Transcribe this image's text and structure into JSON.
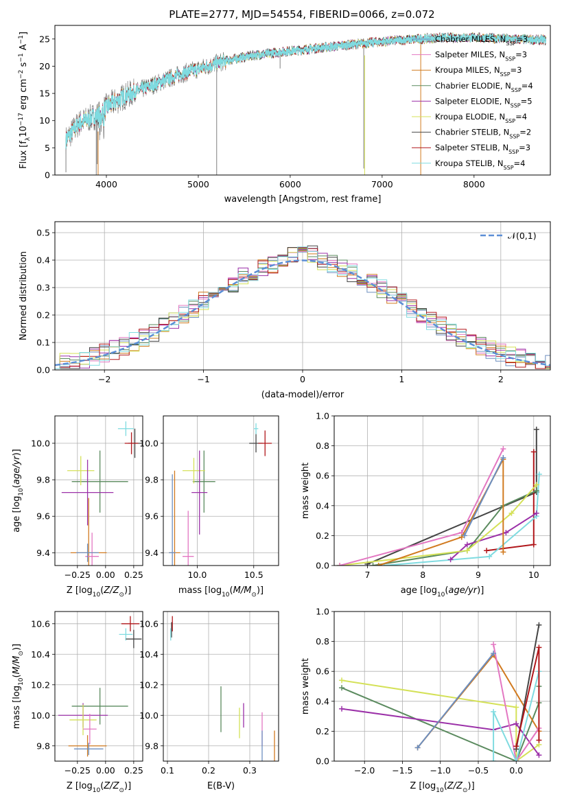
{
  "figure_title": "PLATE=2777, MJD=54554, FIBERID=0066, z=0.072",
  "colors": {
    "Chabrier MILES": "#6c8ebf",
    "Salpeter MILES": "#e377c2",
    "Kroupa MILES": "#d17a1f",
    "Chabrier ELODIE": "#5a8a5e",
    "Salpeter ELODIE": "#9b30a8",
    "Kroupa ELODIE": "#d4e157",
    "Chabrier STELIB": "#444444",
    "Salpeter STELIB": "#b0161a",
    "Kroupa STELIB": "#7fdbe0",
    "data": "#7f7f7f",
    "normal": "#5b8ed6"
  },
  "chart_data": [
    {
      "type": "line",
      "id": "spectrum",
      "xlabel": "wavelength [Angstrom, rest frame]",
      "ylabel": "Flux [f_λ10^-17 erg cm^-2 s^-1 A^-1]",
      "xlim": [
        3440,
        8830
      ],
      "ylim": [
        0,
        27.5
      ],
      "xticks": [
        4000,
        5000,
        6000,
        7000,
        8000
      ],
      "yticks": [
        0,
        5,
        10,
        15,
        20,
        25
      ],
      "legend_position": "right",
      "series": [
        {
          "name": "Chabrier MILES, N_SSP=3"
        },
        {
          "name": "Salpeter MILES, N_SSP=3"
        },
        {
          "name": "Kroupa MILES, N_SSP=3"
        },
        {
          "name": "Chabrier ELODIE, N_SSP=4"
        },
        {
          "name": "Salpeter ELODIE, N_SSP=5"
        },
        {
          "name": "Kroupa ELODIE, N_SSP=4"
        },
        {
          "name": "Chabrier STELIB, N_SSP=2"
        },
        {
          "name": "Salpeter STELIB, N_SSP=3"
        },
        {
          "name": "Kroupa STELIB, N_SSP=4"
        }
      ],
      "continuum": [
        [
          3560,
          6.5
        ],
        [
          3700,
          9.5
        ],
        [
          3900,
          11
        ],
        [
          4000,
          12.5
        ],
        [
          4200,
          14.5
        ],
        [
          4500,
          16.5
        ],
        [
          4800,
          18.5
        ],
        [
          5000,
          19.5
        ],
        [
          5300,
          21
        ],
        [
          5600,
          22
        ],
        [
          6000,
          22.8
        ],
        [
          6400,
          23.5
        ],
        [
          6800,
          24.2
        ],
        [
          7200,
          24.8
        ],
        [
          7600,
          25.2
        ],
        [
          8000,
          25.3
        ],
        [
          8400,
          25
        ],
        [
          8780,
          24.8
        ]
      ]
    },
    {
      "type": "step",
      "id": "residuals",
      "xlabel": "(data-model)/error",
      "ylabel": "Normed distribution",
      "xlim": [
        -2.5,
        2.5
      ],
      "ylim": [
        0,
        0.54
      ],
      "xticks": [
        -2,
        -1,
        0,
        1,
        2
      ],
      "yticks": [
        0.0,
        0.1,
        0.2,
        0.3,
        0.4,
        0.5
      ],
      "legend": "𝒩(0,1)",
      "bin_width": 0.1
    },
    {
      "type": "scatter",
      "id": "age-vs-Z",
      "xlabel": "Z [log10(Z/Z⊙)]",
      "ylabel": "age [log10(age/yr)]",
      "xlim": [
        -0.45,
        0.33
      ],
      "ylim": [
        9.33,
        10.15
      ],
      "xticks": [
        -0.25,
        0.0,
        0.25
      ],
      "yticks": [
        9.4,
        9.6,
        9.8,
        10.0
      ],
      "points": [
        {
          "m": "Kroupa STELIB",
          "x": 0.18,
          "y": 10.08,
          "xe": 0.07,
          "ye": 0.04
        },
        {
          "m": "Chabrier STELIB",
          "x": 0.26,
          "y": 10.0,
          "xe": 0.06,
          "ye": 0.08
        },
        {
          "m": "Salpeter STELIB",
          "x": 0.23,
          "y": 10.0,
          "xe": 0.06,
          "ye": 0.06
        },
        {
          "m": "Chabrier ELODIE",
          "x": -0.05,
          "y": 9.79,
          "xe": 0.25,
          "ye": 0.17
        },
        {
          "m": "Kroupa ELODIE",
          "x": -0.22,
          "y": 9.85,
          "xe": 0.12,
          "ye": 0.08
        },
        {
          "m": "Salpeter ELODIE",
          "x": -0.16,
          "y": 9.73,
          "xe": 0.23,
          "ye": 0.18
        },
        {
          "m": "Kroupa MILES",
          "x": -0.15,
          "y": 9.4,
          "xe": 0.16,
          "ye": 0.3
        },
        {
          "m": "Salpeter MILES",
          "x": -0.12,
          "y": 9.38,
          "xe": 0.06,
          "ye": 0.13
        },
        {
          "m": "Chabrier MILES",
          "x": -0.16,
          "y": 9.4,
          "xe": 0.1,
          "ye": 0.05
        }
      ]
    },
    {
      "type": "scatter",
      "id": "age-vs-mass",
      "xlabel": "mass [log10(M/M⊙)]",
      "xlim": [
        9.7,
        10.72
      ],
      "ylim": [
        9.33,
        10.15
      ],
      "xticks": [
        10.0,
        10.5
      ],
      "yticks": [
        9.4,
        9.6,
        9.8,
        10.0
      ],
      "points": [
        {
          "m": "Kroupa STELIB",
          "x": 10.52,
          "y": 10.08,
          "xe": 0.02,
          "ye": 0.03
        },
        {
          "m": "Chabrier STELIB",
          "x": 10.52,
          "y": 10.0,
          "xe": 0.06,
          "ye": 0.05
        },
        {
          "m": "Salpeter STELIB",
          "x": 10.6,
          "y": 10.0,
          "xe": 0.06,
          "ye": 0.07
        },
        {
          "m": "Chabrier ELODIE",
          "x": 10.06,
          "y": 9.79,
          "xe": 0.1,
          "ye": 0.17
        },
        {
          "m": "Kroupa ELODIE",
          "x": 9.97,
          "y": 9.85,
          "xe": 0.1,
          "ye": 0.07
        },
        {
          "m": "Salpeter ELODIE",
          "x": 10.02,
          "y": 9.73,
          "xe": 0.07,
          "ye": 0.23
        },
        {
          "m": "Kroupa MILES",
          "x": 9.8,
          "y": 9.4,
          "xe": 0.05,
          "ye": 0.45
        },
        {
          "m": "Salpeter MILES",
          "x": 9.92,
          "y": 9.38,
          "xe": 0.05,
          "ye": 0.25
        },
        {
          "m": "Chabrier MILES",
          "x": 9.78,
          "y": 9.4,
          "xe": 0.03,
          "ye": 0.43
        }
      ]
    },
    {
      "type": "line",
      "id": "massweight-vs-age",
      "xlabel": "age [log10(age/yr)]",
      "ylabel": "mass weight",
      "xlim": [
        6.4,
        10.3
      ],
      "ylim": [
        0,
        1.0
      ],
      "xticks": [
        7,
        8,
        9,
        10
      ],
      "yticks": [
        0.0,
        0.2,
        0.4,
        0.6,
        0.8,
        1.0
      ],
      "series": [
        {
          "m": "Chabrier STELIB",
          "pts": [
            [
              7.0,
              0.01
            ],
            [
              10.05,
              0.49
            ],
            [
              10.05,
              0.91
            ]
          ]
        },
        {
          "m": "Salpeter STELIB",
          "pts": [
            [
              9.15,
              0.1
            ],
            [
              10.0,
              0.14
            ],
            [
              10.0,
              0.76
            ]
          ]
        },
        {
          "m": "Kroupa STELIB",
          "pts": [
            [
              7.3,
              0.0
            ],
            [
              9.2,
              0.06
            ],
            [
              10.05,
              0.33
            ],
            [
              10.1,
              0.61
            ]
          ]
        },
        {
          "m": "Chabrier ELODIE",
          "pts": [
            [
              7.1,
              0.0
            ],
            [
              8.8,
              0.1
            ],
            [
              9.45,
              0.4
            ],
            [
              10.05,
              0.5
            ]
          ]
        },
        {
          "m": "Salpeter ELODIE",
          "pts": [
            [
              8.5,
              0.04
            ],
            [
              8.8,
              0.14
            ],
            [
              9.5,
              0.22
            ],
            [
              10.05,
              0.35
            ]
          ]
        },
        {
          "m": "Kroupa ELODIE",
          "pts": [
            [
              6.5,
              0.0
            ],
            [
              8.8,
              0.1
            ],
            [
              9.6,
              0.35
            ],
            [
              10.05,
              0.54
            ]
          ]
        },
        {
          "m": "Salpeter MILES",
          "pts": [
            [
              6.5,
              0.0
            ],
            [
              8.7,
              0.22
            ],
            [
              9.45,
              0.78
            ]
          ]
        },
        {
          "m": "Kroupa MILES",
          "pts": [
            [
              7.2,
              0.0
            ],
            [
              8.7,
              0.19
            ],
            [
              9.45,
              0.71
            ],
            [
              9.45,
              0.09
            ]
          ]
        },
        {
          "m": "Chabrier MILES",
          "pts": [
            [
              8.75,
              0.2
            ],
            [
              9.45,
              0.72
            ]
          ]
        }
      ]
    },
    {
      "type": "scatter",
      "id": "mass-vs-Z",
      "xlabel": "Z [log10(Z/Z⊙)]",
      "ylabel": "mass [log10(M/M⊙)]",
      "xlim": [
        -0.45,
        0.33
      ],
      "ylim": [
        9.7,
        10.68
      ],
      "xticks": [
        -0.25,
        0.0,
        0.25
      ],
      "yticks": [
        9.8,
        10.0,
        10.2,
        10.4,
        10.6
      ],
      "points": [
        {
          "m": "Kroupa STELIB",
          "x": 0.18,
          "y": 10.53,
          "xe": 0.06,
          "ye": 0.04
        },
        {
          "m": "Chabrier STELIB",
          "x": 0.25,
          "y": 10.5,
          "xe": 0.07,
          "ye": 0.06
        },
        {
          "m": "Salpeter STELIB",
          "x": 0.22,
          "y": 10.6,
          "xe": 0.08,
          "ye": 0.05
        },
        {
          "m": "Chabrier ELODIE",
          "x": -0.05,
          "y": 10.06,
          "xe": 0.25,
          "ye": 0.12
        },
        {
          "m": "Salpeter ELODIE",
          "x": -0.2,
          "y": 10.0,
          "xe": 0.22,
          "ye": 0.08
        },
        {
          "m": "Kroupa ELODIE",
          "x": -0.2,
          "y": 9.97,
          "xe": 0.12,
          "ye": 0.1
        },
        {
          "m": "Salpeter MILES",
          "x": -0.14,
          "y": 9.91,
          "xe": 0.06,
          "ye": 0.1
        },
        {
          "m": "Kroupa MILES",
          "x": -0.16,
          "y": 9.8,
          "xe": 0.17,
          "ye": 0.07
        },
        {
          "m": "Chabrier MILES",
          "x": -0.15,
          "y": 9.78,
          "xe": 0.13,
          "ye": 0.04
        }
      ]
    },
    {
      "type": "scatter",
      "id": "mass-vs-EBV",
      "xlabel": "E(B-V)",
      "xlim": [
        0.09,
        0.37
      ],
      "ylim": [
        9.7,
        10.68
      ],
      "xticks": [
        0.1,
        0.2,
        0.3
      ],
      "yticks": [
        9.8,
        10.0,
        10.2,
        10.4,
        10.6
      ],
      "points": [
        {
          "m": "Chabrier STELIB",
          "x": 0.11,
          "y": 10.56,
          "ye": 0.05
        },
        {
          "m": "Salpeter STELIB",
          "x": 0.112,
          "y": 10.6,
          "ye": 0.05
        },
        {
          "m": "Kroupa STELIB",
          "x": 0.108,
          "y": 10.53,
          "ye": 0.04
        },
        {
          "m": "Chabrier ELODIE",
          "x": 0.23,
          "y": 10.04,
          "ye": 0.15
        },
        {
          "m": "Salpeter ELODIE",
          "x": 0.285,
          "y": 10.0,
          "ye": 0.08
        },
        {
          "m": "Kroupa ELODIE",
          "x": 0.275,
          "y": 9.95,
          "ye": 0.1
        },
        {
          "m": "Salpeter MILES",
          "x": 0.33,
          "y": 9.91,
          "ye": 0.11
        },
        {
          "m": "Chabrier MILES",
          "x": 0.33,
          "y": 9.8,
          "ye": 0.1
        },
        {
          "m": "Kroupa MILES",
          "x": 0.36,
          "y": 9.8,
          "ye": 0.1
        }
      ]
    },
    {
      "type": "line",
      "id": "massweight-vs-Z",
      "xlabel": "Z [log10(Z/Z⊙)]",
      "ylabel": "mass weight",
      "xlim": [
        -2.4,
        0.45
      ],
      "ylim": [
        0,
        1.0
      ],
      "xticks": [
        -2.0,
        -1.5,
        -1.0,
        -0.5,
        0.0
      ],
      "yticks": [
        0.0,
        0.2,
        0.4,
        0.6,
        0.8,
        1.0
      ],
      "series": [
        {
          "m": "Kroupa ELODIE",
          "pts": [
            [
              -2.3,
              0.54
            ],
            [
              0.0,
              0.36
            ],
            [
              0.0,
              0.0
            ],
            [
              0.3,
              0.11
            ]
          ]
        },
        {
          "m": "Chabrier ELODIE",
          "pts": [
            [
              -2.3,
              0.49
            ],
            [
              0.0,
              0.0
            ],
            [
              0.3,
              0.39
            ],
            [
              0.3,
              0.5
            ]
          ]
        },
        {
          "m": "Salpeter ELODIE",
          "pts": [
            [
              -2.3,
              0.35
            ],
            [
              -0.3,
              0.21
            ],
            [
              0.0,
              0.25
            ],
            [
              0.3,
              0.04
            ]
          ]
        },
        {
          "m": "Kroupa MILES",
          "pts": [
            [
              -1.3,
              0.09
            ],
            [
              -0.3,
              0.71
            ],
            [
              0.3,
              0.2
            ]
          ]
        },
        {
          "m": "Salpeter MILES",
          "pts": [
            [
              -0.3,
              0.78
            ],
            [
              0.0,
              0.0
            ],
            [
              0.3,
              0.22
            ]
          ]
        },
        {
          "m": "Chabrier MILES",
          "pts": [
            [
              -1.3,
              0.09
            ],
            [
              -0.3,
              0.72
            ]
          ]
        },
        {
          "m": "Kroupa STELIB",
          "pts": [
            [
              -0.3,
              0.0
            ],
            [
              -0.3,
              0.33
            ],
            [
              0.0,
              0.0
            ],
            [
              0.3,
              0.6
            ]
          ]
        },
        {
          "m": "Chabrier STELIB",
          "pts": [
            [
              0.0,
              0.08
            ],
            [
              0.3,
              0.91
            ]
          ]
        },
        {
          "m": "Salpeter STELIB",
          "pts": [
            [
              0.0,
              0.1
            ],
            [
              0.3,
              0.76
            ],
            [
              0.3,
              0.14
            ]
          ]
        }
      ]
    }
  ]
}
